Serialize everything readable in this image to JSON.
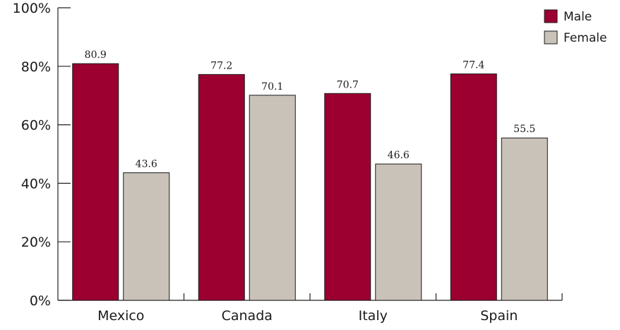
{
  "chart_data": {
    "type": "bar",
    "categories": [
      "Mexico",
      "Canada",
      "Italy",
      "Spain"
    ],
    "series": [
      {
        "name": "Male",
        "values": [
          80.9,
          77.2,
          70.7,
          77.4
        ],
        "color": "#9b0030"
      },
      {
        "name": "Female",
        "values": [
          43.6,
          70.1,
          46.6,
          55.5
        ],
        "color": "#c9c2b8"
      }
    ],
    "data_labels": [
      [
        "80.9",
        "77.2",
        "70.7",
        "77.4"
      ],
      [
        "43.6",
        "70.1",
        "46.6",
        "55.5"
      ]
    ],
    "yticks": [
      0,
      20,
      40,
      60,
      80,
      100
    ],
    "ytick_labels": [
      "0%",
      "20%",
      "40%",
      "60%",
      "80%",
      "100%"
    ],
    "ylim": [
      0,
      100
    ],
    "grid": false,
    "legend_position": "top-right"
  }
}
